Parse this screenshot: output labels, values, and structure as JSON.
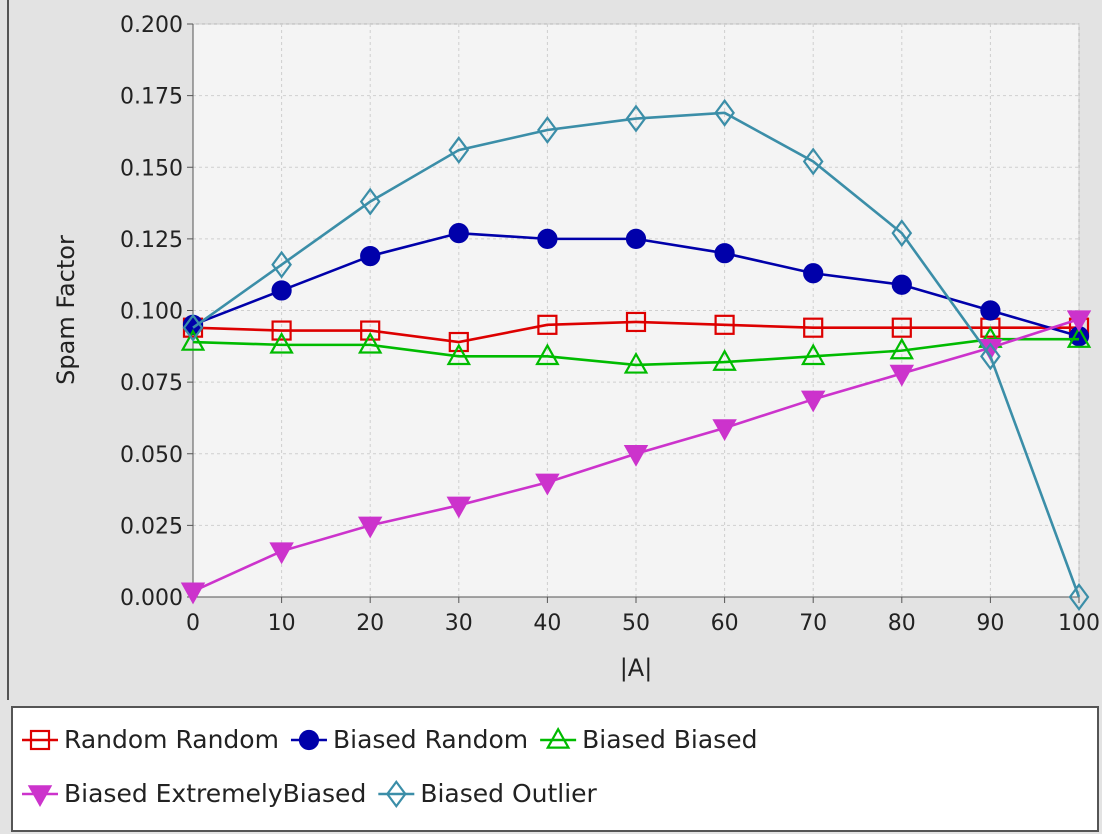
{
  "chart_data": {
    "type": "line",
    "title": "",
    "xlabel": "|A|",
    "ylabel": "Spam Factor",
    "x": [
      0,
      10,
      20,
      30,
      40,
      50,
      60,
      70,
      80,
      90,
      100
    ],
    "x_tick_labels": [
      "0",
      "10",
      "20",
      "30",
      "40",
      "50",
      "60",
      "70",
      "80",
      "90",
      "100"
    ],
    "y_tick_labels": [
      "0.000",
      "0.025",
      "0.050",
      "0.075",
      "0.100",
      "0.125",
      "0.150",
      "0.175",
      "0.200"
    ],
    "xlim": [
      0,
      100
    ],
    "ylim": [
      0,
      0.2
    ],
    "grid": true,
    "legend_position": "bottom",
    "series": [
      {
        "name": "Random Random",
        "color": "#dd0000",
        "marker": "square",
        "values": [
          0.094,
          0.093,
          0.093,
          0.089,
          0.095,
          0.096,
          0.095,
          0.094,
          0.094,
          0.094,
          0.094
        ]
      },
      {
        "name": "Biased Random",
        "color": "#0000aa",
        "marker": "circle",
        "values": [
          0.095,
          0.107,
          0.119,
          0.127,
          0.125,
          0.125,
          0.12,
          0.113,
          0.109,
          0.1,
          0.091
        ]
      },
      {
        "name": "Biased Biased",
        "color": "#00bb00",
        "marker": "triangle-up",
        "values": [
          0.089,
          0.088,
          0.088,
          0.084,
          0.084,
          0.081,
          0.082,
          0.084,
          0.086,
          0.09,
          0.09
        ]
      },
      {
        "name": "Biased ExtremelyBiased",
        "color": "#cc33cc",
        "marker": "triangle-down",
        "values": [
          0.002,
          0.016,
          0.025,
          0.032,
          0.04,
          0.05,
          0.059,
          0.069,
          0.078,
          0.087,
          0.097
        ]
      },
      {
        "name": "Biased Outlier",
        "color": "#3b8ea8",
        "marker": "diamond",
        "values": [
          0.094,
          0.116,
          0.138,
          0.156,
          0.163,
          0.167,
          0.169,
          0.152,
          0.127,
          0.084,
          0.0
        ]
      }
    ]
  }
}
